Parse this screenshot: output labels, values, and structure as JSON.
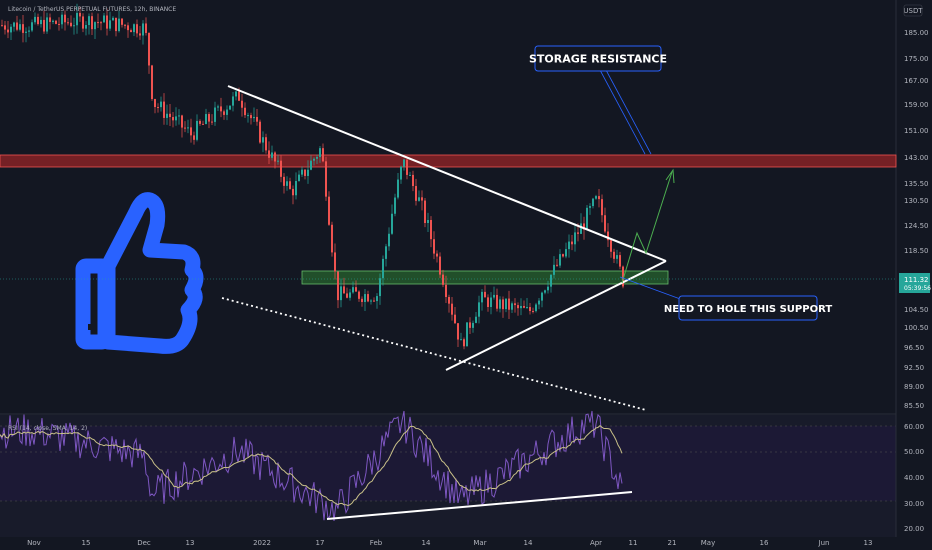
{
  "header": {
    "symbol": "Litecoin / TetherUS PERPETUAL FUTURES, 12h, BINANCE",
    "currency": "USDT"
  },
  "colors": {
    "background": "#131722",
    "up": "#26a69a",
    "down": "#ef5350",
    "resistance_zone": "#c62828",
    "support_zone": "#2e7d32",
    "rsi_line": "#7e57c2",
    "rsi_ma": "#c8c088",
    "thumb": "#2962ff",
    "callout_border": "#2962ff"
  },
  "icons": {
    "thumbs_up": "thumbs-up-icon"
  },
  "price_axis": {
    "ticks": [
      "185.00",
      "175.00",
      "167.00",
      "159.00",
      "151.00",
      "143.00",
      "135.50",
      "130.50",
      "124.50",
      "118.50",
      "111.32",
      "104.50",
      "100.50",
      "96.50",
      "92.50",
      "89.00",
      "85.50"
    ],
    "last_price": "111.32",
    "countdown": "05:39:56"
  },
  "rsi_axis": {
    "ticks": [
      "60.00",
      "50.00",
      "40.00",
      "30.00",
      "20.00"
    ]
  },
  "rsi_header": "RSI (14, close, SMA, 14, 2)",
  "time_axis": [
    "Nov",
    "15",
    "Dec",
    "13",
    "2022",
    "17",
    "Feb",
    "14",
    "Mar",
    "14",
    "Apr",
    "11",
    "21",
    "May",
    "16",
    "Jun",
    "13"
  ],
  "annotations": {
    "storage_resistance": "STORAGE RESISTANCE",
    "support_note": "NEED TO HOLE THIS SUPPORT"
  },
  "chart_data": {
    "type": "candlestick",
    "symbol": "Litecoin / TetherUS PERPETUAL FUTURES",
    "interval": "12h",
    "exchange": "BINANCE",
    "last_price": 111.32,
    "price_range": [
      85.5,
      185
    ],
    "resistance_zone": [
      140.5,
      145
    ],
    "support_zone": [
      109.5,
      113.5
    ],
    "close_series": [
      {
        "t": "Nov",
        "close": 188
      },
      {
        "t": "Nov 15",
        "close": 190
      },
      {
        "t": "Dec",
        "close": 187
      },
      {
        "t": "Dec 3",
        "close": 160
      },
      {
        "t": "Dec 13",
        "close": 150
      },
      {
        "t": "Dec 28",
        "close": 162
      },
      {
        "t": "2022",
        "close": 148
      },
      {
        "t": "Jan 9",
        "close": 133
      },
      {
        "t": "Jan 17",
        "close": 146
      },
      {
        "t": "Jan 21",
        "close": 108
      },
      {
        "t": "Feb",
        "close": 108
      },
      {
        "t": "Feb 8",
        "close": 142
      },
      {
        "t": "Feb 14",
        "close": 125
      },
      {
        "t": "Feb 24",
        "close": 97
      },
      {
        "t": "Mar",
        "close": 107
      },
      {
        "t": "Mar 14",
        "close": 104
      },
      {
        "t": "Mar 28",
        "close": 125
      },
      {
        "t": "Apr",
        "close": 131
      },
      {
        "t": "Apr 8",
        "close": 111.32
      }
    ],
    "rsi": {
      "length": 14,
      "source": "close",
      "ma": "SMA",
      "ma_length": 14,
      "range": [
        20,
        65
      ],
      "values": [
        {
          "t": "Nov",
          "v": 58
        },
        {
          "t": "Dec",
          "v": 48
        },
        {
          "t": "Dec 3",
          "v": 33
        },
        {
          "t": "Dec 28",
          "v": 50
        },
        {
          "t": "Jan 21",
          "v": 26
        },
        {
          "t": "Feb 8",
          "v": 62
        },
        {
          "t": "Feb 24",
          "v": 30
        },
        {
          "t": "Mar 28",
          "v": 60
        },
        {
          "t": "Apr",
          "v": 61
        },
        {
          "t": "Apr 8",
          "v": 34
        }
      ]
    }
  }
}
